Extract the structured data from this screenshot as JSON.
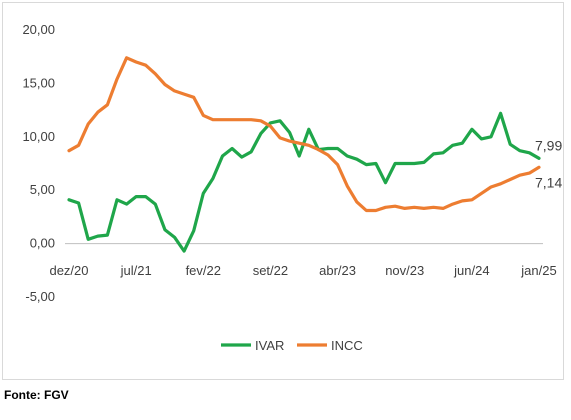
{
  "chart_data": {
    "type": "line",
    "title": "",
    "xlabel": "",
    "ylabel": "",
    "ylim": [
      -5,
      20
    ],
    "y_ticks": [
      "-5,00",
      "0,00",
      "5,00",
      "10,00",
      "15,00",
      "20,00"
    ],
    "x_tick_labels": [
      "dez/20",
      "jul/21",
      "fev/22",
      "set/22",
      "abr/23",
      "nov/23",
      "jun/24",
      "jan/25"
    ],
    "x": [
      "dez/20",
      "jan/21",
      "fev/21",
      "mar/21",
      "abr/21",
      "mai/21",
      "jun/21",
      "jul/21",
      "ago/21",
      "set/21",
      "out/21",
      "nov/21",
      "dez/21",
      "jan/22",
      "fev/22",
      "mar/22",
      "abr/22",
      "mai/22",
      "jun/22",
      "jul/22",
      "ago/22",
      "set/22",
      "out/22",
      "nov/22",
      "dez/22",
      "jan/23",
      "fev/23",
      "mar/23",
      "abr/23",
      "mai/23",
      "jun/23",
      "jul/23",
      "ago/23",
      "set/23",
      "out/23",
      "nov/23",
      "dez/23",
      "jan/24",
      "fev/24",
      "mar/24",
      "abr/24",
      "mai/24",
      "jun/24",
      "jul/24",
      "ago/24",
      "set/24",
      "out/24",
      "nov/24",
      "dez/24",
      "jan/25"
    ],
    "series": [
      {
        "name": "IVAR",
        "color": "#1fa64a",
        "values": [
          4.1,
          3.8,
          0.4,
          0.7,
          0.8,
          4.1,
          3.7,
          4.4,
          4.4,
          3.7,
          1.3,
          0.6,
          -0.7,
          1.2,
          4.7,
          6.1,
          8.2,
          8.9,
          8.1,
          8.6,
          10.3,
          11.3,
          11.5,
          10.4,
          8.2,
          10.7,
          8.8,
          8.9,
          8.9,
          8.2,
          7.9,
          7.4,
          7.5,
          5.7,
          7.5,
          7.5,
          7.5,
          7.6,
          8.4,
          8.5,
          9.2,
          9.4,
          10.7,
          9.8,
          10.0,
          12.2,
          9.3,
          8.7,
          8.5,
          7.99
        ],
        "last_label": "7,99"
      },
      {
        "name": "INCC",
        "color": "#ed7d31",
        "values": [
          8.7,
          9.2,
          11.2,
          12.3,
          13.0,
          15.4,
          17.4,
          17.0,
          16.7,
          15.9,
          14.9,
          14.3,
          14.0,
          13.7,
          12.0,
          11.6,
          11.6,
          11.6,
          11.6,
          11.6,
          11.5,
          11.0,
          9.9,
          9.6,
          9.4,
          9.2,
          8.8,
          8.3,
          7.4,
          5.4,
          3.9,
          3.1,
          3.1,
          3.4,
          3.5,
          3.3,
          3.4,
          3.3,
          3.4,
          3.3,
          3.7,
          4.0,
          4.1,
          4.7,
          5.3,
          5.6,
          6.0,
          6.4,
          6.6,
          7.14
        ],
        "last_label": "7,14"
      }
    ],
    "legend": {
      "position": "bottom",
      "entries": [
        "IVAR",
        "INCC"
      ]
    },
    "grid": false
  },
  "source_note": "Fonte: FGV"
}
